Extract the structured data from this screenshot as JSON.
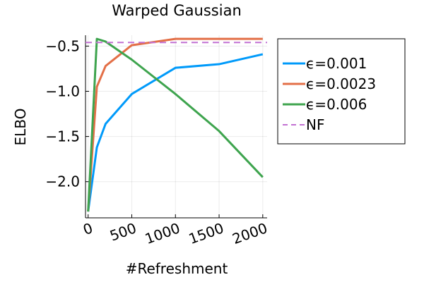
{
  "chart_data": {
    "type": "line",
    "title": "Warped Gaussian",
    "xlabel": "#Refreshment",
    "ylabel": "ELBO",
    "xlim": [
      -30,
      2050
    ],
    "ylim": [
      -2.4,
      -0.38
    ],
    "xticks": [
      0,
      500,
      1000,
      1500,
      2000
    ],
    "xtick_labels": [
      "0",
      "500",
      "1000",
      "1500",
      "2000"
    ],
    "yticks": [
      -2.0,
      -1.5,
      -1.0,
      -0.5
    ],
    "ytick_labels": [
      "−2.0",
      "−1.5",
      "−1.0",
      "−0.5"
    ],
    "grid": true,
    "legend_position": "outside-right",
    "series": [
      {
        "name": "ϵ=0.001",
        "color": "#009AFA",
        "style": "solid",
        "x": [
          0,
          100,
          200,
          500,
          1000,
          1500,
          2000
        ],
        "y": [
          -2.33,
          -1.62,
          -1.36,
          -1.03,
          -0.74,
          -0.7,
          -0.59
        ]
      },
      {
        "name": "ϵ=0.0023",
        "color": "#E36F47",
        "style": "solid",
        "x": [
          0,
          100,
          200,
          500,
          1000,
          1500,
          2000
        ],
        "y": [
          -2.33,
          -0.95,
          -0.72,
          -0.49,
          -0.42,
          -0.42,
          -0.42
        ]
      },
      {
        "name": "ϵ=0.006",
        "color": "#3EA44E",
        "style": "solid",
        "x": [
          0,
          100,
          200,
          500,
          1000,
          1500,
          2000
        ],
        "y": [
          -2.33,
          -0.42,
          -0.45,
          -0.65,
          -1.03,
          -1.44,
          -1.95
        ]
      },
      {
        "name": "NF",
        "color": "#C271D2",
        "style": "dashed",
        "hline": -0.46
      }
    ]
  }
}
